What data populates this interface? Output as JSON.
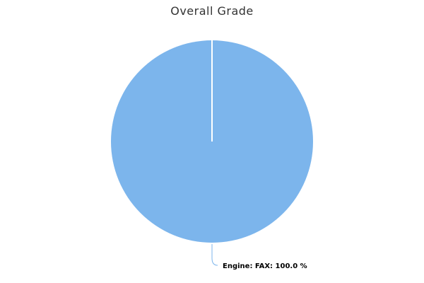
{
  "chart_data": {
    "type": "pie",
    "title": "Overall Grade",
    "slices": [
      {
        "label": "Engine: FAX",
        "value": 100.0,
        "display": "Engine: FAX: 100.0 %",
        "color": "#7cb5ec"
      }
    ]
  }
}
